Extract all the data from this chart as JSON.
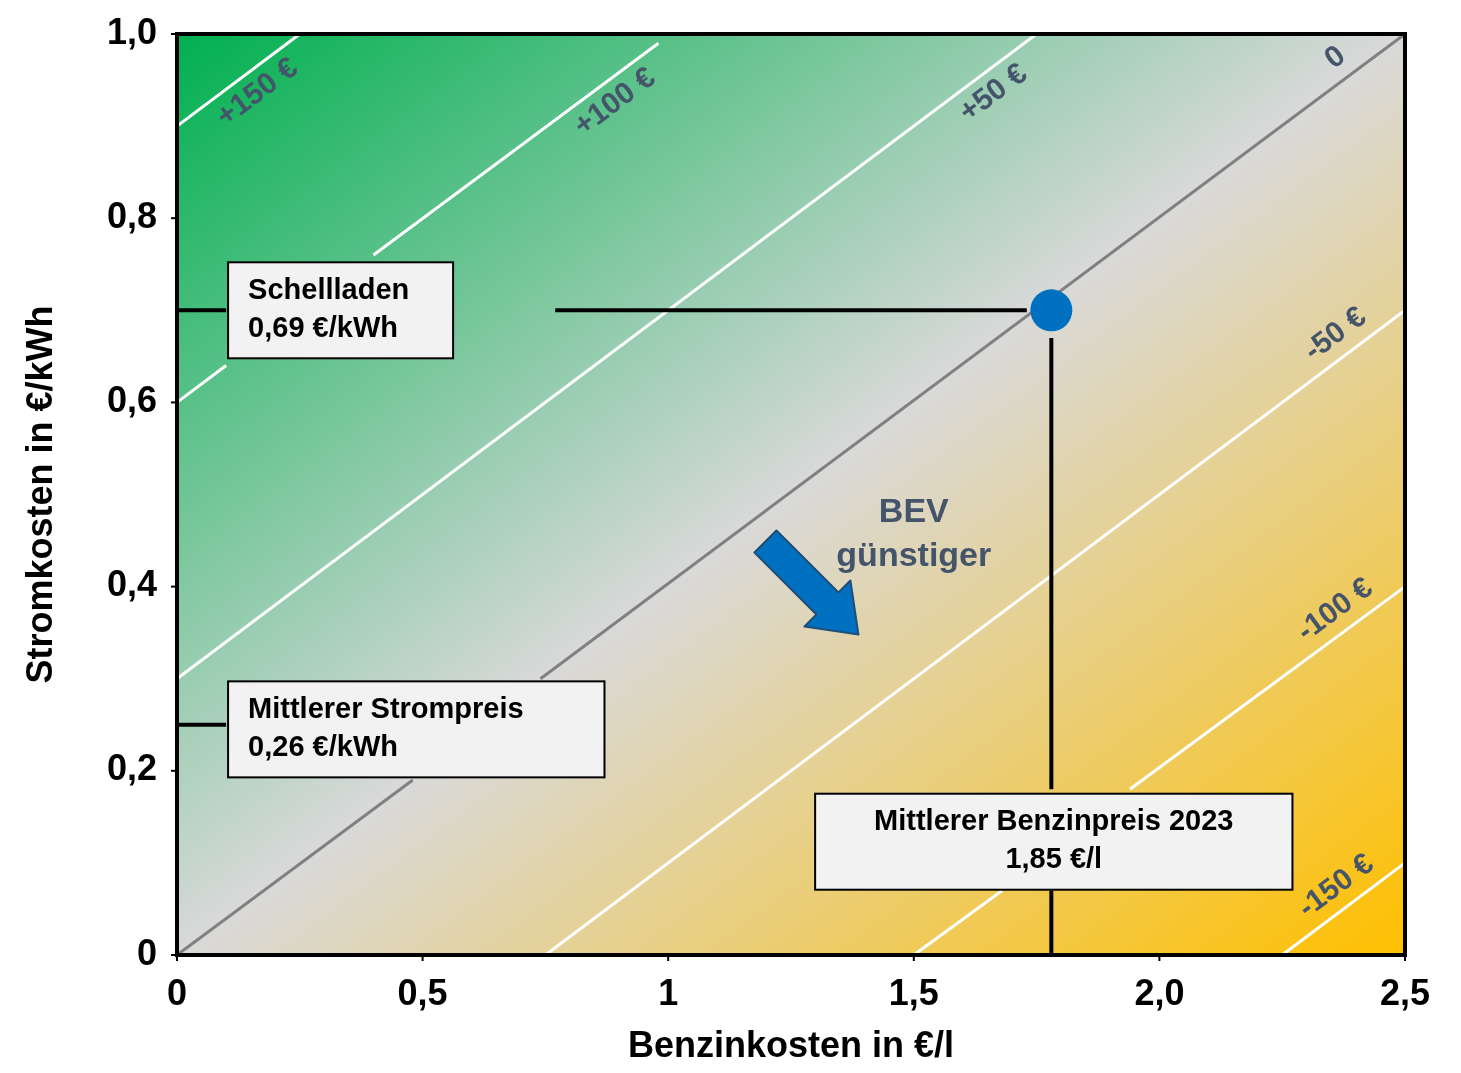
{
  "chart_data": {
    "type": "line",
    "xlabel": "Benzinkosten in €/l",
    "ylabel": "Stromkosten in €/kWh",
    "xlim": [
      0,
      2.5
    ],
    "ylim": [
      0,
      1.0
    ],
    "xticks": [
      0,
      {
        "value": 0.5,
        "label": "0,5"
      },
      1,
      {
        "value": 1.5,
        "label": "1,5"
      },
      {
        "value": 2.0,
        "label": "2,0"
      },
      {
        "value": 2.5,
        "label": "2,5"
      }
    ],
    "yticks": [
      0,
      {
        "value": 0.2,
        "label": "0,2"
      },
      {
        "value": 0.4,
        "label": "0,4"
      },
      {
        "value": 0.6,
        "label": "0,6"
      },
      {
        "value": 0.8,
        "label": "0,8"
      },
      {
        "value": 1.0,
        "label": "1,0"
      }
    ],
    "grid": false,
    "line_style": "solid",
    "marker": "none",
    "series": [
      {
        "name": "+150 €",
        "color": "#ffffff",
        "x": [
          0,
          0.25
        ],
        "values": [
          0.9,
          1.0
        ]
      },
      {
        "color": "#ffffff",
        "x": [
          0,
          0.1
        ],
        "values": [
          0.6,
          0.64
        ]
      },
      {
        "name": "+100 €",
        "color": "#ffffff",
        "x": [
          0.4,
          0.98
        ],
        "values": [
          0.76,
          0.99
        ]
      },
      {
        "name": "+50 €",
        "color": "#ffffff",
        "x": [
          0,
          1.75
        ],
        "values": [
          0.3,
          1.0
        ]
      },
      {
        "color": "#808080",
        "x": [
          0,
          0.48
        ],
        "values": [
          0,
          0.19
        ]
      },
      {
        "name": "0",
        "color": "#808080",
        "x": [
          0.74,
          2.5
        ],
        "values": [
          0.3,
          1.0
        ]
      },
      {
        "name": "-50 €",
        "color": "#ffffff",
        "x": [
          0.75,
          2.5
        ],
        "values": [
          0,
          0.7
        ]
      },
      {
        "color": "#ffffff",
        "x": [
          1.5,
          1.68
        ],
        "values": [
          0,
          0.07
        ]
      },
      {
        "name": "-100 €",
        "color": "#ffffff",
        "x": [
          1.94,
          2.5
        ],
        "values": [
          0.18,
          0.4
        ]
      },
      {
        "name": "-150 €",
        "color": "#ffffff",
        "x": [
          2.25,
          2.5
        ],
        "values": [
          0,
          0.1
        ]
      },
      {
        "color": "#000000",
        "x": [
          0,
          0.1
        ],
        "values": [
          0.7,
          0.7
        ]
      },
      {
        "color": "#000000",
        "x": [
          0.77,
          1.73
        ],
        "values": [
          0.7,
          0.7
        ]
      },
      {
        "color": "#000000",
        "x": [
          1.78,
          1.78
        ],
        "values": [
          0.67,
          0.18
        ]
      },
      {
        "color": "#000000",
        "x": [
          1.78,
          1.78
        ],
        "values": [
          0.07,
          0
        ]
      },
      {
        "color": "#000000",
        "x": [
          0,
          0.1
        ],
        "values": [
          0.25,
          0.25
        ]
      },
      {
        "type": "scatter",
        "color": "#0070c0",
        "marker": "circle",
        "x": [
          1.78
        ],
        "values": [
          0.7
        ]
      }
    ],
    "annotations": [
      "Schellladen\n0,69 €/kWh",
      "Mittlerer Strompreis\n0,26 €/kWh",
      "Mittlerer Benzinpreis 2023\n1,85 €/l",
      "BEV\ngünstiger"
    ]
  }
}
